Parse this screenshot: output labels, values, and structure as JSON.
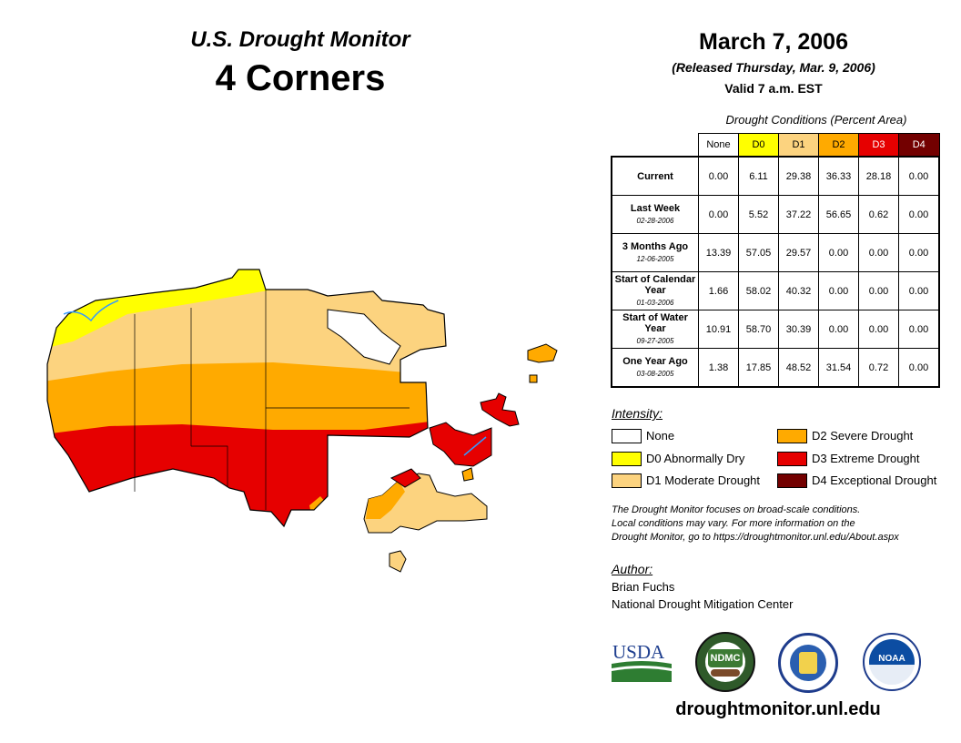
{
  "header": {
    "monitor_title": "U.S. Drought Monitor",
    "region": "4 Corners",
    "date": "March 7, 2006",
    "released": "(Released Thursday, Mar. 9, 2006)",
    "valid": "Valid 7 a.m. EST"
  },
  "table": {
    "caption": "Drought Conditions (Percent Area)",
    "columns": [
      "None",
      "D0",
      "D1",
      "D2",
      "D3",
      "D4"
    ],
    "column_colors": [
      "#ffffff",
      "#ffff00",
      "#fcd37f",
      "#ffaa00",
      "#e60000",
      "#730000"
    ],
    "rows": [
      {
        "label": "Current",
        "sub": "",
        "values": [
          "0.00",
          "6.11",
          "29.38",
          "36.33",
          "28.18",
          "0.00"
        ]
      },
      {
        "label": "Last Week",
        "sub": "02-28-2006",
        "values": [
          "0.00",
          "5.52",
          "37.22",
          "56.65",
          "0.62",
          "0.00"
        ]
      },
      {
        "label": "3 Months Ago",
        "sub": "12-06-2005",
        "values": [
          "13.39",
          "57.05",
          "29.57",
          "0.00",
          "0.00",
          "0.00"
        ]
      },
      {
        "label": "Start of Calendar Year",
        "sub": "01-03-2006",
        "values": [
          "1.66",
          "58.02",
          "40.32",
          "0.00",
          "0.00",
          "0.00"
        ]
      },
      {
        "label": "Start of Water Year",
        "sub": "09-27-2005",
        "values": [
          "10.91",
          "58.70",
          "30.39",
          "0.00",
          "0.00",
          "0.00"
        ]
      },
      {
        "label": "One Year Ago",
        "sub": "03-08-2005",
        "values": [
          "1.38",
          "17.85",
          "48.52",
          "31.54",
          "0.72",
          "0.00"
        ]
      }
    ]
  },
  "legend": {
    "title": "Intensity:",
    "items": [
      {
        "label": "None",
        "color": "#ffffff"
      },
      {
        "label": "D0 Abnormally Dry",
        "color": "#ffff00"
      },
      {
        "label": "D1 Moderate Drought",
        "color": "#fcd37f"
      },
      {
        "label": "D2 Severe Drought",
        "color": "#ffaa00"
      },
      {
        "label": "D3 Extreme Drought",
        "color": "#e60000"
      },
      {
        "label": "D4 Exceptional Drought",
        "color": "#730000"
      }
    ]
  },
  "note": {
    "line1": "The Drought Monitor focuses on broad-scale conditions.",
    "line2": "Local conditions may vary. For more information on the",
    "line3": "Drought Monitor, go to https://droughtmonitor.unl.edu/About.aspx"
  },
  "author": {
    "heading": "Author:",
    "name": "Brian Fuchs",
    "org": "National Drought Mitigation Center"
  },
  "logos": {
    "usda": "USDA",
    "ndmc": "NDMC",
    "noaa": "NOAA"
  },
  "footer": {
    "site": "droughtmonitor.unl.edu"
  }
}
